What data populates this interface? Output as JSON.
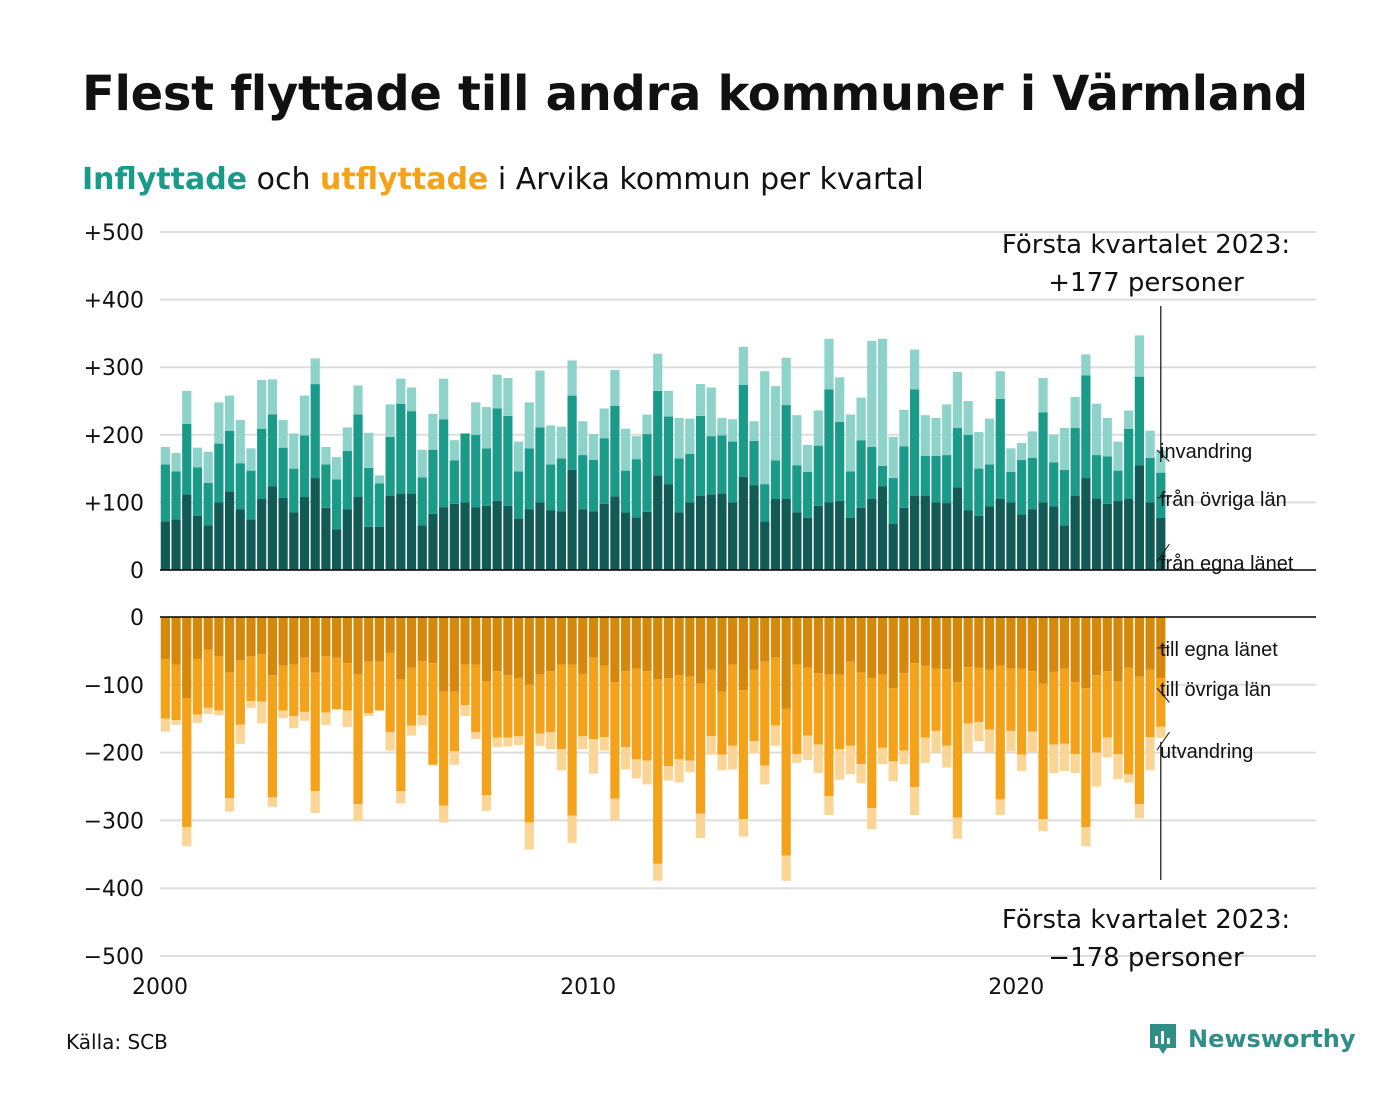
{
  "title": "Flest flyttade till andra kommuner i Värmland",
  "subtitle": {
    "in_word": "Inflyttade",
    "and_word": "och",
    "out_word": "utflyttade",
    "rest": "i Arvika kommun per kvartal"
  },
  "source": "Källa: SCB",
  "brand": "Newsworthy",
  "icon": "newsworthy-logo-icon",
  "colors": {
    "in_egna": "#115a55",
    "in_ovriga": "#1a9a89",
    "in_invandring": "#8dd3c9",
    "out_egna": "#d6880d",
    "out_ovriga": "#f5a21b",
    "out_utvandring": "#fbd596",
    "grid": "#dddddd",
    "axis": "#000000",
    "brand": "#2f8f86"
  },
  "chart_data": {
    "type": "bar",
    "stacked": true,
    "diverging": true,
    "x_label": "",
    "y_label": "",
    "x_ticks": [
      "2000",
      "2010",
      "2020"
    ],
    "x_range": [
      2000,
      2027
    ],
    "start_year": 2000,
    "top_axis": {
      "range": [
        0,
        500
      ],
      "ticks": [
        {
          "value": 0,
          "label": "0"
        },
        {
          "value": 100,
          "label": "+100"
        },
        {
          "value": 200,
          "label": "+200"
        },
        {
          "value": 300,
          "label": "+300"
        },
        {
          "value": 400,
          "label": "+400"
        },
        {
          "value": 500,
          "label": "+500"
        }
      ]
    },
    "bottom_axis": {
      "range": [
        -500,
        0
      ],
      "ticks": [
        {
          "value": 0,
          "label": "0"
        },
        {
          "value": -100,
          "label": "−100"
        },
        {
          "value": -200,
          "label": "−200"
        },
        {
          "value": -300,
          "label": "−300"
        },
        {
          "value": -400,
          "label": "−400"
        },
        {
          "value": -500,
          "label": "−500"
        }
      ]
    },
    "annotations": {
      "top": [
        "Första kvartalet 2023:",
        "+177 personer"
      ],
      "bottom": [
        "Första kvartalet 2023:",
        "−178 personer"
      ]
    },
    "series_labels": {
      "in_invandring": "invandring",
      "in_ovriga": "från övriga län",
      "in_egna": "från egna länet",
      "out_egna": "till egna länet",
      "out_ovriga": "till övriga län",
      "out_utvandring": "utvandring"
    },
    "in_totals": [
      182,
      173,
      265,
      181,
      175,
      248,
      258,
      222,
      180,
      281,
      282,
      222,
      202,
      258,
      313,
      182,
      167,
      211,
      273,
      203,
      140,
      245,
      283,
      270,
      178,
      231,
      283,
      192,
      199,
      248,
      241,
      289,
      284,
      190,
      248,
      295,
      214,
      212,
      310,
      220,
      201,
      239,
      296,
      209,
      198,
      230,
      320,
      265,
      225,
      224,
      275,
      270,
      225,
      223,
      330,
      220,
      294,
      272,
      314,
      229,
      185,
      236,
      342,
      285,
      230,
      255,
      339,
      342,
      197,
      237,
      326,
      229,
      225,
      245,
      293,
      250,
      204,
      224,
      294,
      180,
      188,
      205,
      284,
      200,
      210,
      256,
      319,
      246,
      225,
      190,
      236,
      347,
      206,
      177
    ],
    "in_egna": [
      72,
      75,
      112,
      80,
      66,
      100,
      116,
      90,
      75,
      105,
      124,
      107,
      85,
      108,
      136,
      92,
      60,
      90,
      108,
      64,
      64,
      110,
      113,
      113,
      66,
      83,
      93,
      98,
      100,
      93,
      95,
      102,
      95,
      76,
      90,
      100,
      88,
      87,
      148,
      90,
      87,
      98,
      109,
      85,
      78,
      86,
      140,
      127,
      85,
      100,
      110,
      112,
      113,
      100,
      138,
      125,
      72,
      105,
      105,
      85,
      77,
      95,
      100,
      102,
      77,
      92,
      105,
      124,
      68,
      92,
      110,
      110,
      100,
      99,
      122,
      88,
      80,
      94,
      105,
      100,
      82,
      90,
      100,
      94,
      66,
      110,
      136,
      106,
      98,
      102,
      105,
      155,
      100,
      77
    ],
    "in_ovriga": [
      84,
      71,
      104,
      72,
      63,
      87,
      90,
      68,
      72,
      104,
      106,
      74,
      65,
      91,
      139,
      64,
      74,
      86,
      122,
      87,
      64,
      87,
      133,
      122,
      71,
      95,
      130,
      64,
      102,
      107,
      85,
      137,
      133,
      70,
      90,
      111,
      68,
      78,
      110,
      80,
      76,
      97,
      134,
      62,
      86,
      115,
      125,
      100,
      80,
      72,
      118,
      86,
      86,
      90,
      136,
      66,
      55,
      57,
      139,
      70,
      68,
      89,
      167,
      117,
      69,
      100,
      77,
      30,
      68,
      91,
      157,
      59,
      69,
      71,
      88,
      112,
      70,
      62,
      148,
      45,
      81,
      76,
      133,
      65,
      82,
      100,
      152,
      64,
      70,
      45,
      104,
      131,
      66,
      67
    ],
    "out_totals": [
      169,
      159,
      338,
      156,
      143,
      145,
      287,
      187,
      134,
      157,
      280,
      149,
      164,
      153,
      289,
      159,
      137,
      162,
      301,
      146,
      138,
      197,
      275,
      175,
      160,
      219,
      303,
      218,
      146,
      180,
      286,
      192,
      191,
      189,
      343,
      190,
      195,
      226,
      333,
      195,
      231,
      197,
      300,
      225,
      238,
      247,
      389,
      241,
      244,
      229,
      326,
      203,
      226,
      225,
      324,
      201,
      247,
      190,
      389,
      215,
      211,
      230,
      292,
      240,
      232,
      245,
      313,
      217,
      242,
      217,
      292,
      215,
      200,
      222,
      327,
      200,
      183,
      200,
      292,
      198,
      227,
      199,
      316,
      230,
      227,
      230,
      338,
      250,
      207,
      239,
      244,
      297,
      226,
      178
    ],
    "out_egna": [
      62,
      70,
      120,
      62,
      48,
      58,
      82,
      64,
      58,
      55,
      86,
      72,
      70,
      60,
      82,
      58,
      60,
      68,
      84,
      66,
      66,
      53,
      92,
      75,
      65,
      68,
      110,
      110,
      70,
      70,
      95,
      80,
      86,
      90,
      100,
      85,
      80,
      70,
      70,
      84,
      60,
      72,
      96,
      80,
      76,
      80,
      92,
      90,
      86,
      88,
      98,
      78,
      110,
      70,
      108,
      78,
      66,
      60,
      135,
      70,
      75,
      83,
      85,
      85,
      66,
      82,
      90,
      85,
      105,
      83,
      68,
      72,
      76,
      77,
      96,
      74,
      75,
      78,
      72,
      76,
      76,
      80,
      98,
      81,
      76,
      96,
      105,
      86,
      80,
      95,
      75,
      88,
      78,
      90
    ],
    "out_ovriga": [
      88,
      82,
      190,
      82,
      86,
      80,
      185,
      95,
      66,
      70,
      180,
      66,
      76,
      80,
      175,
      83,
      76,
      70,
      192,
      76,
      72,
      117,
      165,
      85,
      80,
      150,
      168,
      88,
      60,
      100,
      168,
      98,
      92,
      86,
      203,
      87,
      90,
      125,
      223,
      92,
      120,
      105,
      172,
      112,
      134,
      132,
      272,
      130,
      124,
      124,
      192,
      98,
      93,
      120,
      190,
      105,
      153,
      100,
      217,
      132,
      100,
      105,
      179,
      110,
      124,
      135,
      192,
      108,
      108,
      114,
      183,
      106,
      92,
      113,
      200,
      83,
      80,
      88,
      197,
      92,
      127,
      89,
      200,
      107,
      111,
      106,
      205,
      114,
      98,
      107,
      157,
      188,
      99,
      72
    ]
  }
}
